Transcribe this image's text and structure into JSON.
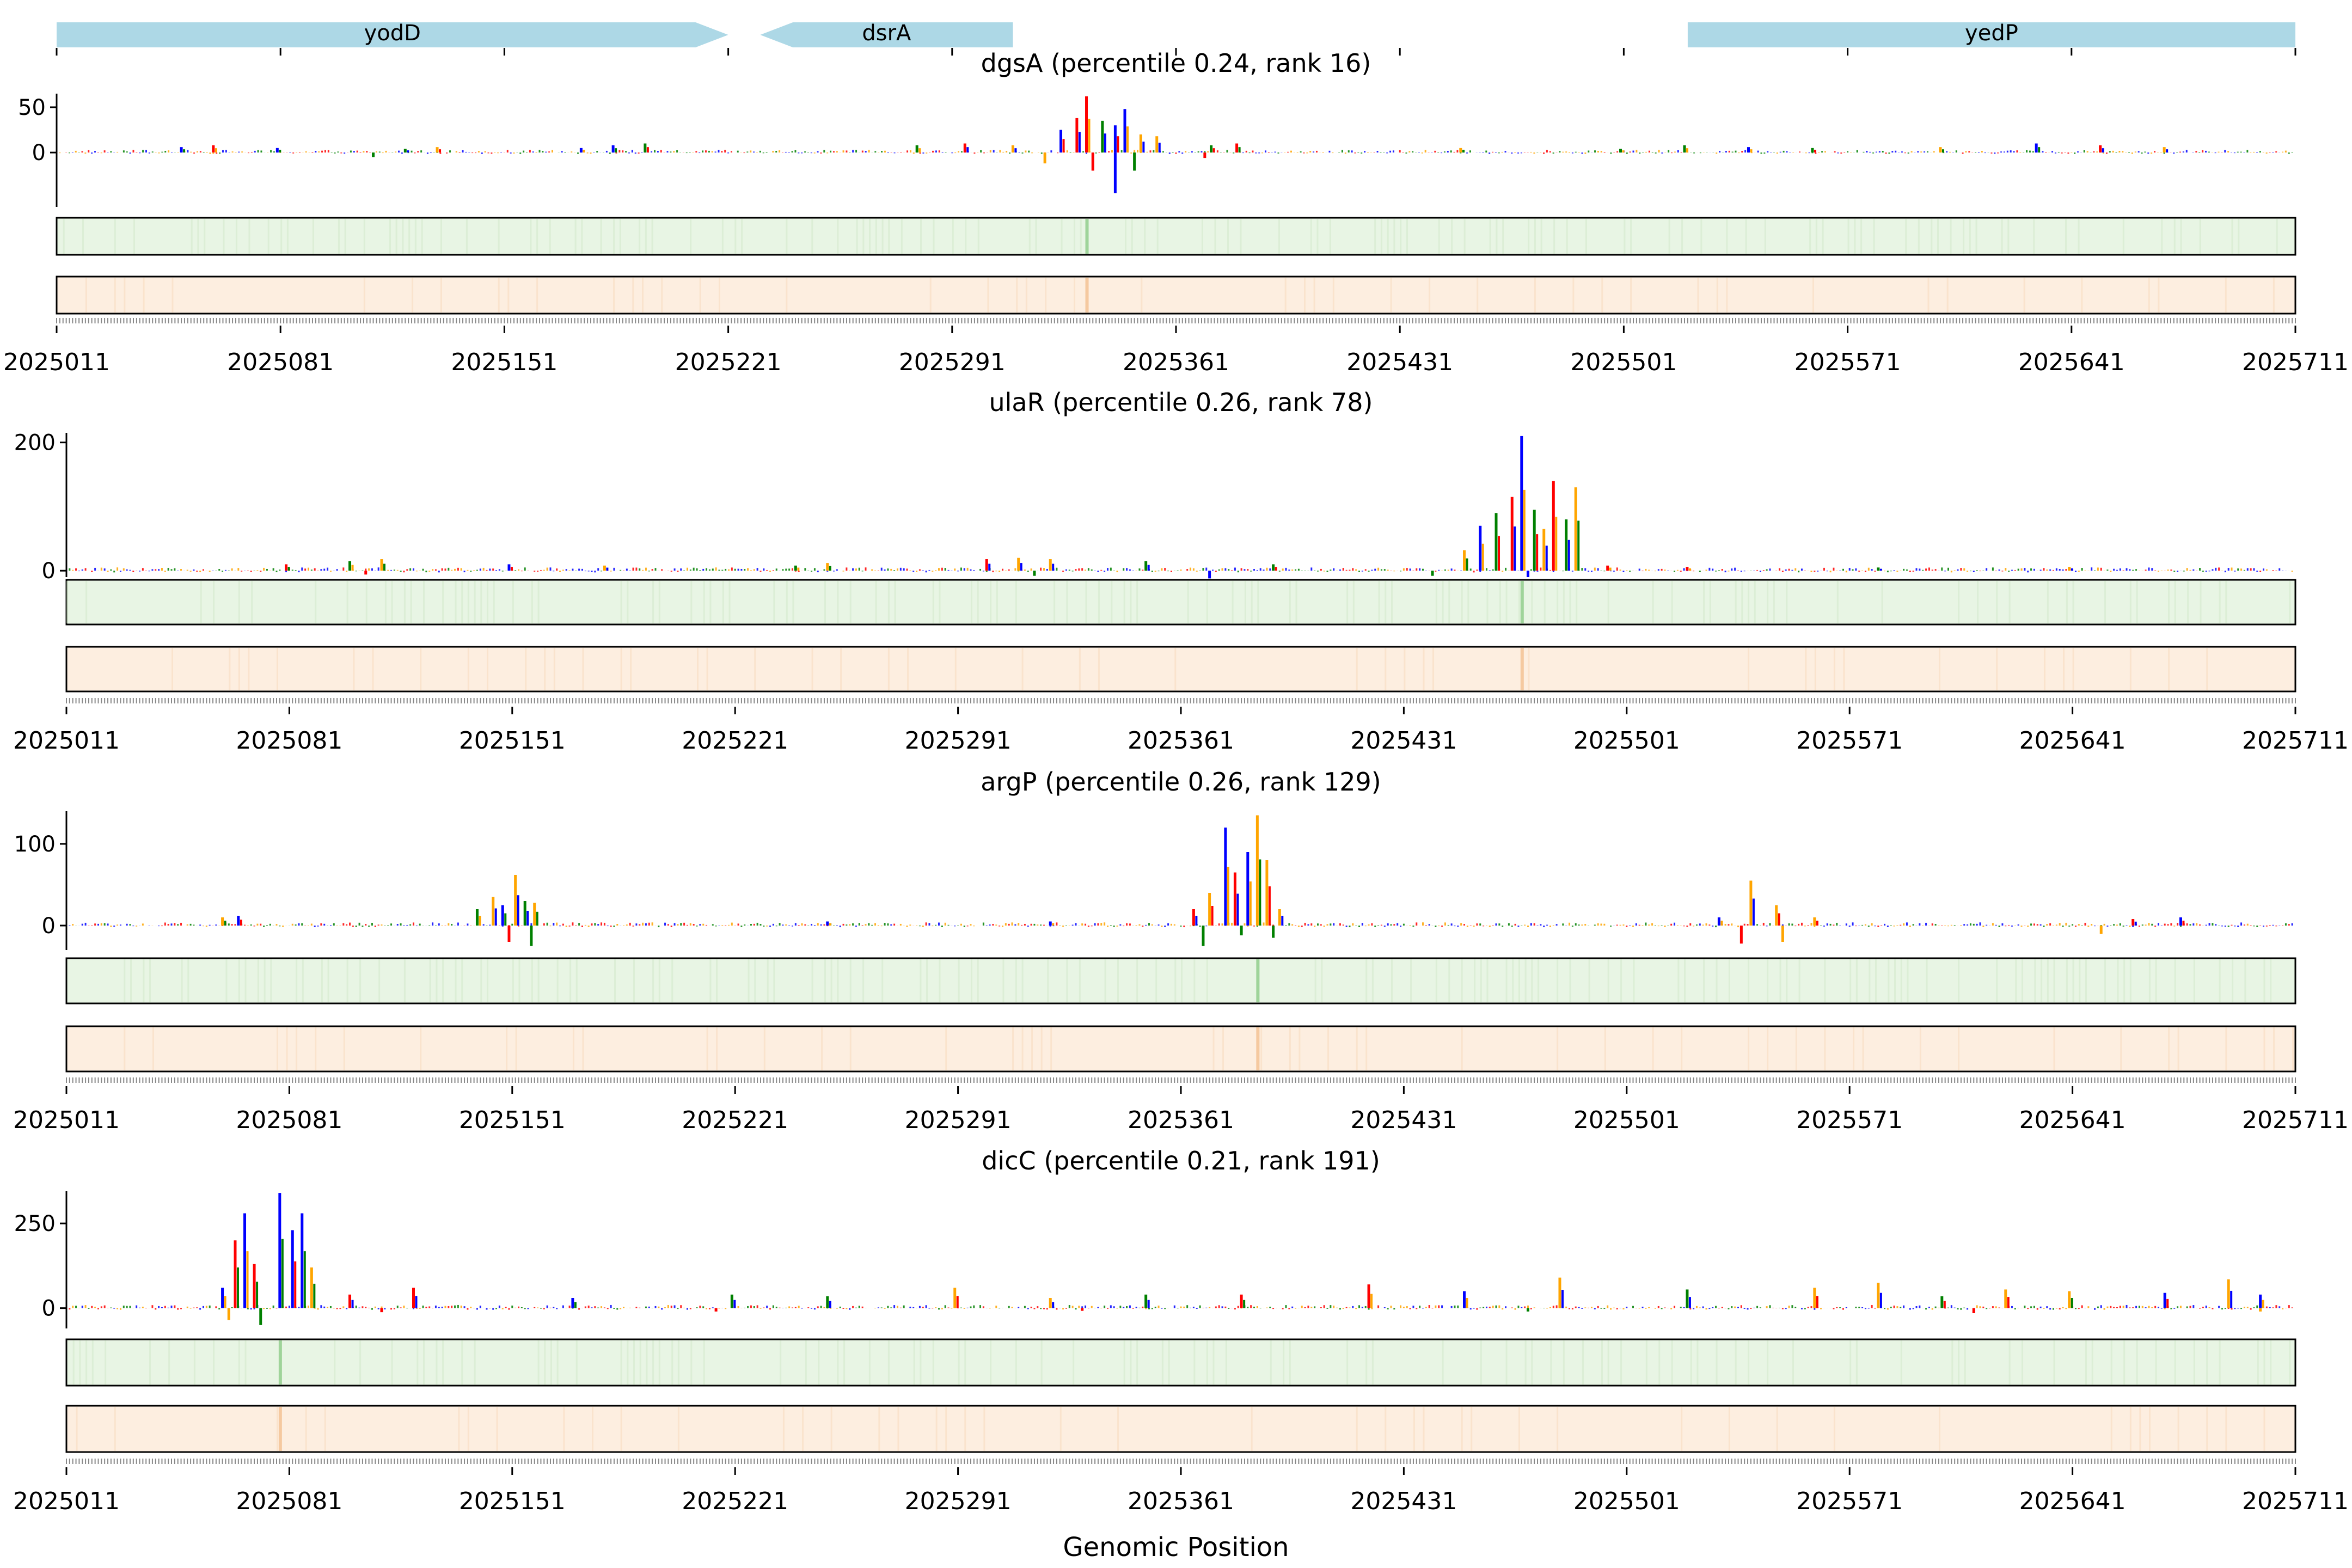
{
  "genes": [
    {
      "name": "yodD",
      "start": 2025011,
      "end": 2025221,
      "strand": "+",
      "color": "#add8e6"
    },
    {
      "name": "dsrA",
      "start": 2025231,
      "end": 2025310,
      "strand": "-",
      "color": "#add8e6"
    },
    {
      "name": "yedP",
      "start": 2025521,
      "end": 2025711,
      "strand": "+",
      "color": "#add8e6"
    }
  ],
  "colors": {
    "A": "#008000",
    "C": "#0000ff",
    "G": "#ffa500",
    "T": "#ff0000",
    "track_green": "#e8f5e4",
    "track_orange": "#fdeee0"
  },
  "x_label": "Genomic Position",
  "chart_data": [
    {
      "type": "area",
      "title": "dgsA (percentile 0.24, rank 16)",
      "xlim": [
        2025011,
        2025711
      ],
      "ylim": [
        -60,
        65
      ],
      "yticks": [
        0,
        50
      ],
      "xticks": [
        2025011,
        2025081,
        2025151,
        2025221,
        2025291,
        2025361,
        2025431,
        2025501,
        2025571,
        2025641,
        2025711
      ],
      "peaks": [
        [
          2025050,
          6
        ],
        [
          2025060,
          8
        ],
        [
          2025080,
          5
        ],
        [
          2025120,
          4
        ],
        [
          2025130,
          6
        ],
        [
          2025175,
          5
        ],
        [
          2025185,
          8
        ],
        [
          2025195,
          10
        ],
        [
          2025280,
          8
        ],
        [
          2025295,
          10
        ],
        [
          2025310,
          8
        ],
        [
          2025325,
          25
        ],
        [
          2025330,
          38
        ],
        [
          2025333,
          62
        ],
        [
          2025338,
          35
        ],
        [
          2025342,
          30
        ],
        [
          2025345,
          48
        ],
        [
          2025350,
          20
        ],
        [
          2025355,
          18
        ],
        [
          2025372,
          8
        ],
        [
          2025380,
          10
        ],
        [
          2025450,
          5
        ],
        [
          2025500,
          4
        ],
        [
          2025520,
          8
        ],
        [
          2025540,
          6
        ],
        [
          2025560,
          5
        ],
        [
          2025600,
          6
        ],
        [
          2025630,
          10
        ],
        [
          2025650,
          8
        ],
        [
          2025670,
          6
        ]
      ],
      "troughs": [
        [
          2025335,
          -20
        ],
        [
          2025342,
          -45
        ],
        [
          2025348,
          -20
        ],
        [
          2025320,
          -12
        ],
        [
          2025370,
          -6
        ],
        [
          2025110,
          -5
        ]
      ]
    },
    {
      "type": "area",
      "title": "ulaR (percentile 0.26, rank 78)",
      "xlim": [
        2025011,
        2025711
      ],
      "ylim": [
        -10,
        215
      ],
      "yticks": [
        0,
        200
      ],
      "xticks": [
        2025011,
        2025081,
        2025151,
        2025221,
        2025291,
        2025361,
        2025431,
        2025501,
        2025571,
        2025641,
        2025711
      ],
      "peaks": [
        [
          2025080,
          10
        ],
        [
          2025100,
          15
        ],
        [
          2025110,
          18
        ],
        [
          2025150,
          10
        ],
        [
          2025180,
          8
        ],
        [
          2025240,
          8
        ],
        [
          2025250,
          12
        ],
        [
          2025300,
          18
        ],
        [
          2025310,
          20
        ],
        [
          2025320,
          18
        ],
        [
          2025350,
          15
        ],
        [
          2025390,
          10
        ],
        [
          2025450,
          32
        ],
        [
          2025455,
          70
        ],
        [
          2025460,
          90
        ],
        [
          2025465,
          115
        ],
        [
          2025468,
          210
        ],
        [
          2025472,
          95
        ],
        [
          2025475,
          65
        ],
        [
          2025478,
          140
        ],
        [
          2025482,
          80
        ],
        [
          2025485,
          130
        ],
        [
          2025495,
          8
        ],
        [
          2025520,
          6
        ],
        [
          2025580,
          5
        ],
        [
          2025640,
          6
        ]
      ],
      "troughs": [
        [
          2025105,
          -6
        ],
        [
          2025315,
          -8
        ],
        [
          2025370,
          -12
        ],
        [
          2025440,
          -8
        ],
        [
          2025470,
          -10
        ]
      ]
    },
    {
      "type": "area",
      "title": "argP (percentile 0.26, rank 129)",
      "xlim": [
        2025011,
        2025711
      ],
      "ylim": [
        -30,
        140
      ],
      "yticks": [
        0,
        100
      ],
      "xticks": [
        2025011,
        2025081,
        2025151,
        2025221,
        2025291,
        2025361,
        2025431,
        2025501,
        2025571,
        2025641,
        2025711
      ],
      "peaks": [
        [
          2025060,
          10
        ],
        [
          2025065,
          12
        ],
        [
          2025140,
          20
        ],
        [
          2025145,
          35
        ],
        [
          2025148,
          25
        ],
        [
          2025152,
          62
        ],
        [
          2025155,
          30
        ],
        [
          2025158,
          28
        ],
        [
          2025250,
          5
        ],
        [
          2025320,
          5
        ],
        [
          2025365,
          20
        ],
        [
          2025370,
          40
        ],
        [
          2025375,
          120
        ],
        [
          2025378,
          65
        ],
        [
          2025382,
          90
        ],
        [
          2025385,
          135
        ],
        [
          2025388,
          80
        ],
        [
          2025392,
          20
        ],
        [
          2025530,
          10
        ],
        [
          2025540,
          55
        ],
        [
          2025548,
          25
        ],
        [
          2025560,
          10
        ],
        [
          2025660,
          8
        ],
        [
          2025675,
          10
        ]
      ],
      "troughs": [
        [
          2025150,
          -20
        ],
        [
          2025157,
          -25
        ],
        [
          2025368,
          -25
        ],
        [
          2025380,
          -12
        ],
        [
          2025390,
          -15
        ],
        [
          2025537,
          -22
        ],
        [
          2025550,
          -20
        ],
        [
          2025650,
          -10
        ]
      ]
    },
    {
      "type": "area",
      "title": "dicC (percentile 0.21, rank 191)",
      "xlim": [
        2025011,
        2025711
      ],
      "ylim": [
        -60,
        345
      ],
      "yticks": [
        0,
        250
      ],
      "xticks": [
        2025011,
        2025081,
        2025151,
        2025221,
        2025291,
        2025361,
        2025431,
        2025501,
        2025571,
        2025641,
        2025711
      ],
      "peaks": [
        [
          2025060,
          60
        ],
        [
          2025064,
          200
        ],
        [
          2025067,
          280
        ],
        [
          2025070,
          130
        ],
        [
          2025078,
          340
        ],
        [
          2025082,
          230
        ],
        [
          2025085,
          280
        ],
        [
          2025088,
          120
        ],
        [
          2025100,
          40
        ],
        [
          2025120,
          60
        ],
        [
          2025170,
          30
        ],
        [
          2025220,
          40
        ],
        [
          2025250,
          35
        ],
        [
          2025290,
          60
        ],
        [
          2025320,
          30
        ],
        [
          2025350,
          40
        ],
        [
          2025380,
          40
        ],
        [
          2025420,
          70
        ],
        [
          2025450,
          50
        ],
        [
          2025480,
          90
        ],
        [
          2025520,
          55
        ],
        [
          2025560,
          60
        ],
        [
          2025580,
          75
        ],
        [
          2025600,
          35
        ],
        [
          2025620,
          55
        ],
        [
          2025640,
          50
        ],
        [
          2025670,
          45
        ],
        [
          2025690,
          85
        ],
        [
          2025700,
          40
        ]
      ],
      "troughs": [
        [
          2025062,
          -35
        ],
        [
          2025072,
          -50
        ],
        [
          2025110,
          -12
        ],
        [
          2025215,
          -10
        ],
        [
          2025330,
          -8
        ],
        [
          2025470,
          -10
        ],
        [
          2025610,
          -15
        ],
        [
          2025700,
          -10
        ]
      ]
    }
  ]
}
